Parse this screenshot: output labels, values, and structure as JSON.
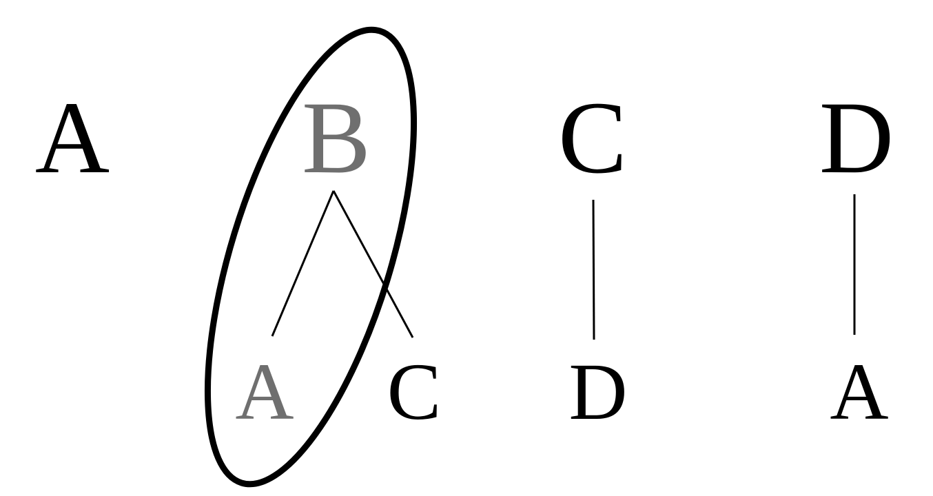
{
  "colors": {
    "ink": "#000000",
    "highlight": "#6f6f6f"
  },
  "top_row": [
    {
      "id": "A",
      "label": "A",
      "highlighted": false
    },
    {
      "id": "B",
      "label": "B",
      "highlighted": true
    },
    {
      "id": "C",
      "label": "C",
      "highlighted": false
    },
    {
      "id": "D",
      "label": "D",
      "highlighted": false
    }
  ],
  "bottom_row": [
    {
      "parent": "B",
      "label": "A",
      "highlighted": true
    },
    {
      "parent": "B",
      "label": "C",
      "highlighted": false
    },
    {
      "parent": "C",
      "label": "D",
      "highlighted": false
    },
    {
      "parent": "D",
      "label": "A",
      "highlighted": false
    }
  ],
  "selection": {
    "shape": "ellipse",
    "encloses": [
      "B",
      "A"
    ]
  }
}
